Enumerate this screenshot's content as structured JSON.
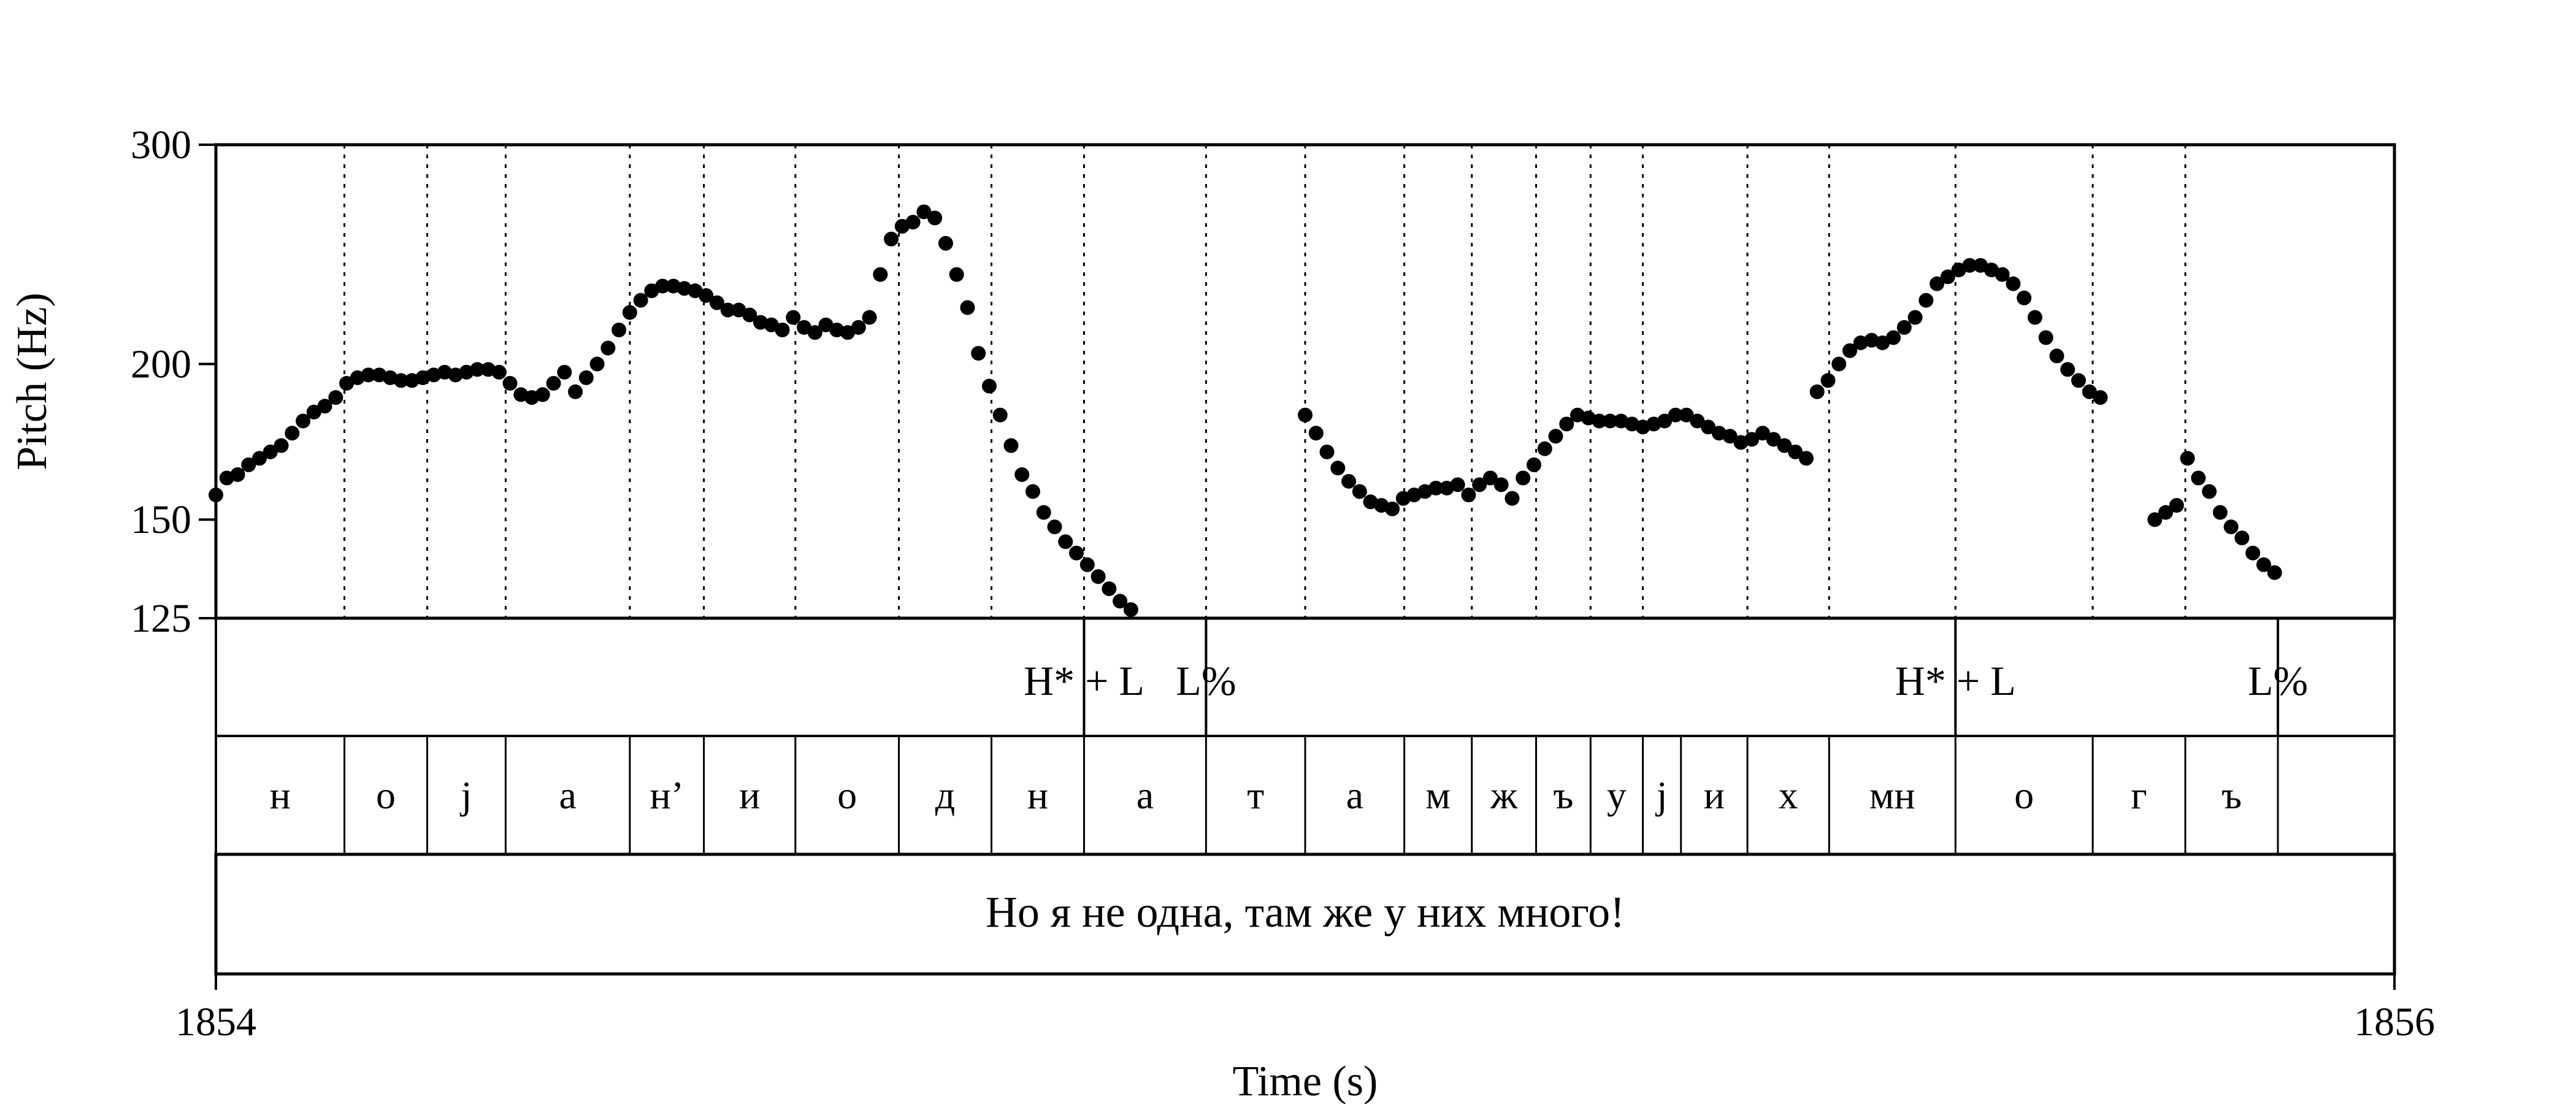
{
  "chart_data": {
    "type": "scatter",
    "title": "",
    "xlabel": "Time (s)",
    "ylabel": "Pitch (Hz)",
    "xlim": [
      1854,
      1856
    ],
    "ylim": [
      125,
      300
    ],
    "y_scale": "log",
    "x_tick_labels": [
      "1854",
      "1856"
    ],
    "y_tick_labels": [
      "125",
      "150",
      "200",
      "300"
    ],
    "y_ticks": [
      125,
      150,
      200,
      300
    ],
    "grid": "dotted vertical lines at segment boundaries",
    "segment_boundaries": [
      1854.118,
      1854.194,
      1854.266,
      1854.38,
      1854.448,
      1854.532,
      1854.627,
      1854.712,
      1854.797,
      1854.909,
      1855.0,
      1855.091,
      1855.153,
      1855.212,
      1855.262,
      1855.31,
      1855.406,
      1855.481,
      1855.597,
      1855.723,
      1855.808
    ],
    "segments": [
      {
        "label": "н",
        "start": 1854.0,
        "end": 1854.118
      },
      {
        "label": "о",
        "start": 1854.118,
        "end": 1854.194
      },
      {
        "label": "j",
        "start": 1854.194,
        "end": 1854.266
      },
      {
        "label": "а",
        "start": 1854.266,
        "end": 1854.38
      },
      {
        "label": "н’",
        "start": 1854.38,
        "end": 1854.448
      },
      {
        "label": "и",
        "start": 1854.448,
        "end": 1854.532
      },
      {
        "label": "о",
        "start": 1854.532,
        "end": 1854.627
      },
      {
        "label": "д",
        "start": 1854.627,
        "end": 1854.712
      },
      {
        "label": "н",
        "start": 1854.712,
        "end": 1854.797
      },
      {
        "label": "а",
        "start": 1854.797,
        "end": 1854.909
      },
      {
        "label": "т",
        "start": 1854.909,
        "end": 1855.0
      },
      {
        "label": "а",
        "start": 1855.0,
        "end": 1855.091
      },
      {
        "label": "м",
        "start": 1855.091,
        "end": 1855.153
      },
      {
        "label": "ж",
        "start": 1855.153,
        "end": 1855.212
      },
      {
        "label": "ъ",
        "start": 1855.212,
        "end": 1855.262
      },
      {
        "label": "у",
        "start": 1855.262,
        "end": 1855.31
      },
      {
        "label": "j",
        "start": 1855.31,
        "end": 1855.345
      },
      {
        "label": "и",
        "start": 1855.345,
        "end": 1855.406
      },
      {
        "label": "х",
        "start": 1855.406,
        "end": 1855.481
      },
      {
        "label": "мн",
        "start": 1855.481,
        "end": 1855.597
      },
      {
        "label": "о",
        "start": 1855.597,
        "end": 1855.723
      },
      {
        "label": "г",
        "start": 1855.723,
        "end": 1855.808
      },
      {
        "label": "ъ",
        "start": 1855.808,
        "end": 1855.893
      },
      {
        "label": "",
        "start": 1855.893,
        "end": 1856.0
      }
    ],
    "tones": [
      {
        "label": "H* + L",
        "time": 1854.797
      },
      {
        "label": "L%",
        "time": 1854.909
      },
      {
        "label": "H* + L",
        "time": 1855.597
      },
      {
        "label": "L%",
        "time": 1855.893
      }
    ],
    "sentence": "Но я не одна, там же у них много!",
    "series": [
      {
        "x": [
          1854.0,
          1854.01,
          1854.02,
          1854.03,
          1854.04,
          1854.05,
          1854.06,
          1854.07,
          1854.08,
          1854.09,
          1854.1,
          1854.11,
          1854.12,
          1854.13,
          1854.14,
          1854.15,
          1854.16,
          1854.17,
          1854.18,
          1854.19,
          1854.2,
          1854.21,
          1854.22,
          1854.23,
          1854.24,
          1854.25,
          1854.26,
          1854.27,
          1854.28,
          1854.29,
          1854.3,
          1854.31,
          1854.32,
          1854.33,
          1854.34,
          1854.35,
          1854.36,
          1854.37,
          1854.38,
          1854.39,
          1854.4,
          1854.41,
          1854.42,
          1854.43,
          1854.44,
          1854.45,
          1854.46,
          1854.47,
          1854.48,
          1854.49,
          1854.5,
          1854.51,
          1854.52,
          1854.53,
          1854.54,
          1854.55,
          1854.56,
          1854.57,
          1854.58,
          1854.59,
          1854.6,
          1854.61,
          1854.62,
          1854.63,
          1854.64,
          1854.65,
          1854.66,
          1854.67,
          1854.68,
          1854.69,
          1854.7,
          1854.71,
          1854.72,
          1854.73,
          1854.74,
          1854.75,
          1854.76,
          1854.77,
          1854.78,
          1854.79,
          1854.8,
          1854.81,
          1854.82,
          1854.83,
          1854.84,
          1854.85,
          1854.86,
          1854.87,
          1854.88,
          1854.89,
          1854.9
        ],
        "y": [
          157,
          162,
          163,
          166,
          168,
          170,
          172,
          176,
          180,
          183,
          185,
          188,
          193,
          195,
          196,
          196,
          195,
          194,
          194,
          195,
          196,
          197,
          196,
          197,
          198,
          198,
          197,
          193,
          189,
          188,
          189,
          193,
          197,
          190,
          195,
          200,
          206,
          213,
          220,
          225,
          229,
          231,
          231,
          230,
          229,
          227,
          224,
          221,
          221,
          219,
          216,
          215,
          213,
          218,
          214,
          212,
          215,
          213,
          212,
          214,
          218,
          236,
          252,
          258,
          260,
          265,
          262,
          250,
          236,
          222,
          204,
          192,
          182,
          172,
          163,
          158,
          152,
          148,
          144,
          141,
          138,
          135,
          132,
          129,
          127,
          125,
          125,
          125,
          125,
          125,
          125
        ]
      },
      {
        "x": [
          1855.0,
          1855.01,
          1855.02,
          1855.03,
          1855.04,
          1855.05,
          1855.06,
          1855.07,
          1855.08,
          1855.09,
          1855.1,
          1855.11,
          1855.12,
          1855.13,
          1855.14,
          1855.15,
          1855.16,
          1855.17,
          1855.18,
          1855.19,
          1855.2,
          1855.21,
          1855.22,
          1855.23,
          1855.24,
          1855.25,
          1855.26,
          1855.27,
          1855.28,
          1855.29,
          1855.3,
          1855.31,
          1855.32,
          1855.33,
          1855.34,
          1855.35,
          1855.36,
          1855.37,
          1855.38,
          1855.39,
          1855.4,
          1855.41,
          1855.42,
          1855.43,
          1855.44,
          1855.45,
          1855.46,
          1855.47,
          1855.48,
          1855.49,
          1855.5,
          1855.51,
          1855.52,
          1855.53,
          1855.54,
          1855.55,
          1855.56,
          1855.57,
          1855.58,
          1855.59,
          1855.6,
          1855.61,
          1855.62,
          1855.63,
          1855.64,
          1855.65,
          1855.66,
          1855.67,
          1855.68,
          1855.69,
          1855.7,
          1855.71,
          1855.72,
          1855.73
        ],
        "y": [
          182,
          176,
          170,
          165,
          161,
          158,
          155,
          154,
          153,
          156,
          157,
          158,
          159,
          159,
          160,
          157,
          160,
          162,
          160,
          156,
          162,
          166,
          171,
          175,
          179,
          182,
          181,
          180,
          180,
          180,
          179,
          178,
          179,
          180,
          182,
          182,
          180,
          178,
          176,
          175,
          173,
          174,
          176,
          174,
          172,
          170,
          168,
          190,
          194,
          200,
          205,
          208,
          209,
          208,
          210,
          214,
          218,
          225,
          232,
          235,
          238,
          240,
          240,
          238,
          236,
          232,
          226,
          218,
          210,
          203,
          198,
          194,
          190,
          188
        ]
      },
      {
        "x": [
          1855.78,
          1855.79,
          1855.8,
          1855.81,
          1855.82,
          1855.83,
          1855.84,
          1855.85,
          1855.86,
          1855.87,
          1855.88,
          1855.89
        ],
        "y": [
          150,
          152,
          154,
          168,
          162,
          158,
          152,
          148,
          145,
          141,
          138,
          136
        ]
      }
    ]
  }
}
